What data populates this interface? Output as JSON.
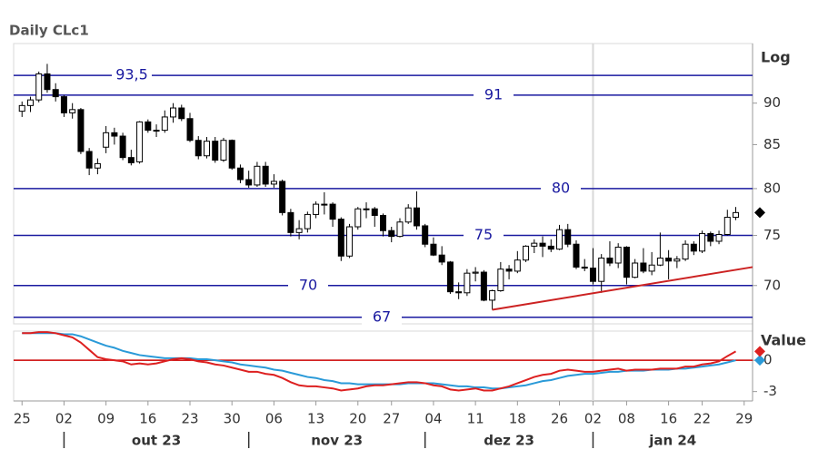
{
  "chart_data": {
    "type": "candlestick",
    "title": "Daily CLc1",
    "y_scale_label": "Log",
    "log_scale": true,
    "up_color": "#ffffff",
    "down_color": "#000000",
    "candles": [
      [
        89.0,
        90.2,
        88.3,
        89.7
      ],
      [
        89.7,
        90.8,
        88.9,
        90.4
      ],
      [
        90.4,
        94.0,
        90.1,
        93.7
      ],
      [
        93.7,
        95.0,
        91.3,
        91.7
      ],
      [
        91.7,
        92.5,
        90.2,
        90.8
      ],
      [
        90.8,
        91.0,
        88.3,
        88.8
      ],
      [
        88.8,
        90.0,
        88.1,
        89.2
      ],
      [
        89.2,
        89.4,
        83.9,
        84.2
      ],
      [
        84.2,
        84.6,
        81.5,
        82.3
      ],
      [
        82.3,
        83.4,
        81.6,
        82.8
      ],
      [
        84.7,
        87.2,
        84.0,
        86.4
      ],
      [
        86.4,
        87.0,
        85.0,
        86.0
      ],
      [
        86.0,
        86.4,
        83.2,
        83.5
      ],
      [
        83.5,
        84.4,
        82.6,
        82.9
      ],
      [
        83.0,
        87.8,
        82.8,
        87.7
      ],
      [
        87.7,
        88.0,
        86.4,
        86.7
      ],
      [
        86.7,
        87.4,
        85.9,
        86.7
      ],
      [
        86.7,
        89.1,
        86.4,
        88.3
      ],
      [
        88.3,
        90.0,
        87.6,
        89.4
      ],
      [
        89.4,
        89.8,
        87.8,
        88.1
      ],
      [
        88.1,
        88.8,
        85.3,
        85.5
      ],
      [
        85.5,
        86.0,
        83.3,
        83.7
      ],
      [
        83.7,
        85.9,
        83.4,
        85.4
      ],
      [
        85.4,
        85.9,
        82.9,
        83.2
      ],
      [
        83.2,
        85.8,
        83.0,
        85.5
      ],
      [
        85.5,
        85.6,
        82.1,
        82.3
      ],
      [
        82.3,
        82.7,
        80.6,
        81.0
      ],
      [
        81.0,
        82.0,
        80.1,
        80.4
      ],
      [
        80.4,
        83.0,
        80.2,
        82.5
      ],
      [
        82.5,
        83.0,
        80.2,
        80.5
      ],
      [
        80.5,
        81.6,
        80.1,
        80.8
      ],
      [
        80.8,
        81.0,
        77.1,
        77.4
      ],
      [
        77.4,
        77.8,
        74.9,
        75.3
      ],
      [
        75.3,
        76.6,
        74.6,
        75.7
      ],
      [
        75.7,
        77.5,
        75.3,
        77.2
      ],
      [
        77.2,
        78.6,
        76.8,
        78.3
      ],
      [
        78.3,
        79.6,
        77.2,
        78.3
      ],
      [
        78.3,
        78.5,
        75.9,
        76.7
      ],
      [
        76.7,
        76.9,
        72.4,
        72.9
      ],
      [
        72.9,
        76.2,
        72.7,
        75.9
      ],
      [
        75.9,
        78.0,
        75.6,
        77.8
      ],
      [
        77.8,
        78.5,
        76.8,
        77.8
      ],
      [
        77.8,
        78.0,
        75.9,
        77.1
      ],
      [
        77.1,
        77.3,
        74.9,
        75.5
      ],
      [
        75.5,
        75.9,
        74.3,
        74.9
      ],
      [
        74.9,
        76.8,
        74.8,
        76.4
      ],
      [
        76.4,
        78.3,
        76.2,
        77.9
      ],
      [
        77.9,
        79.7,
        75.6,
        76.0
      ],
      [
        76.0,
        76.2,
        73.8,
        74.1
      ],
      [
        74.1,
        74.8,
        72.9,
        73.0
      ],
      [
        73.0,
        73.9,
        72.0,
        72.3
      ],
      [
        72.3,
        72.4,
        69.2,
        69.4
      ],
      [
        69.4,
        70.3,
        68.7,
        69.3
      ],
      [
        69.3,
        71.6,
        69.0,
        71.2
      ],
      [
        71.2,
        71.8,
        70.4,
        71.3
      ],
      [
        71.3,
        71.5,
        68.5,
        68.6
      ],
      [
        68.6,
        69.6,
        67.7,
        69.5
      ],
      [
        69.5,
        72.3,
        69.4,
        71.6
      ],
      [
        71.6,
        72.0,
        70.6,
        71.4
      ],
      [
        71.4,
        73.4,
        71.2,
        72.5
      ],
      [
        72.5,
        74.0,
        72.3,
        73.9
      ],
      [
        73.9,
        74.6,
        73.2,
        74.2
      ],
      [
        74.2,
        74.9,
        72.8,
        73.9
      ],
      [
        73.9,
        74.6,
        73.3,
        73.6
      ],
      [
        73.6,
        76.1,
        73.5,
        75.6
      ],
      [
        75.6,
        76.2,
        73.8,
        74.1
      ],
      [
        74.1,
        74.5,
        71.6,
        71.8
      ],
      [
        71.8,
        72.6,
        71.4,
        71.7
      ],
      [
        71.7,
        73.7,
        70.1,
        70.4
      ],
      [
        70.4,
        73.1,
        69.3,
        72.7
      ],
      [
        72.7,
        74.4,
        71.9,
        72.2
      ],
      [
        72.2,
        74.2,
        71.7,
        73.8
      ],
      [
        73.8,
        73.9,
        70.1,
        70.8
      ],
      [
        70.8,
        72.6,
        70.7,
        72.2
      ],
      [
        72.2,
        73.7,
        71.2,
        71.4
      ],
      [
        71.4,
        73.3,
        71.0,
        72.0
      ],
      [
        72.0,
        75.3,
        71.9,
        72.7
      ],
      [
        72.7,
        73.5,
        70.6,
        72.4
      ],
      [
        72.4,
        72.9,
        71.7,
        72.6
      ],
      [
        72.6,
        74.5,
        72.4,
        74.1
      ],
      [
        74.1,
        74.4,
        73.0,
        73.4
      ],
      [
        73.4,
        75.5,
        73.2,
        75.2
      ],
      [
        75.2,
        75.4,
        73.9,
        74.4
      ],
      [
        74.4,
        75.5,
        74.1,
        75.1
      ],
      [
        75.1,
        77.7,
        75.0,
        76.9
      ],
      [
        76.9,
        78.0,
        76.6,
        77.4
      ]
    ],
    "xlim": [
      -1,
      87
    ],
    "xticks": [
      {
        "value": 0,
        "label": "25"
      },
      {
        "value": 5,
        "label": "02"
      },
      {
        "value": 10,
        "label": "09"
      },
      {
        "value": 15,
        "label": "16"
      },
      {
        "value": 20,
        "label": "23"
      },
      {
        "value": 25,
        "label": "30"
      },
      {
        "value": 30,
        "label": "06"
      },
      {
        "value": 35,
        "label": "13"
      },
      {
        "value": 40,
        "label": "20"
      },
      {
        "value": 44,
        "label": "27"
      },
      {
        "value": 49,
        "label": "04"
      },
      {
        "value": 54,
        "label": "11"
      },
      {
        "value": 59,
        "label": "18"
      },
      {
        "value": 64,
        "label": "26"
      },
      {
        "value": 68,
        "label": "02"
      },
      {
        "value": 72,
        "label": "08"
      },
      {
        "value": 77,
        "label": "16"
      },
      {
        "value": 81,
        "label": "22"
      },
      {
        "value": 86,
        "label": "29"
      }
    ],
    "months": [
      "out 23",
      "nov 23",
      "dez 23",
      "jan 24"
    ],
    "month_starts": [
      5,
      27,
      48,
      68
    ],
    "ylim": [
      66.4,
      97.7
    ],
    "yticks": [
      70,
      75,
      80,
      85,
      90
    ],
    "level_color": "#1a1aa0",
    "levels": [
      {
        "value": 93.5,
        "label": "93,5"
      },
      {
        "value": 91,
        "label": "91"
      },
      {
        "value": 80,
        "label": "80"
      },
      {
        "value": 75,
        "label": "75"
      },
      {
        "value": 70,
        "label": "70"
      },
      {
        "value": 67,
        "label": "67"
      }
    ],
    "trendline": {
      "x": [
        56,
        87
      ],
      "values": [
        67.7,
        71.8
      ],
      "color": "#cc2222"
    },
    "indicator": {
      "label": "Value",
      "ylim": [
        -3.9,
        2.8
      ],
      "yticks": [
        0,
        -3
      ],
      "reference_line": {
        "value": 0,
        "color": "#cc0000"
      },
      "series": [
        {
          "color": "#dd2020",
          "values": [
            2.6,
            2.6,
            2.7,
            2.7,
            2.6,
            2.4,
            2.2,
            1.7,
            1.0,
            0.3,
            0.1,
            0.0,
            -0.1,
            -0.4,
            -0.3,
            -0.4,
            -0.3,
            -0.1,
            0.1,
            0.2,
            0.1,
            -0.1,
            -0.2,
            -0.4,
            -0.5,
            -0.7,
            -0.9,
            -1.1,
            -1.1,
            -1.3,
            -1.4,
            -1.7,
            -2.1,
            -2.4,
            -2.5,
            -2.5,
            -2.6,
            -2.7,
            -2.9,
            -2.8,
            -2.7,
            -2.5,
            -2.4,
            -2.4,
            -2.3,
            -2.2,
            -2.1,
            -2.1,
            -2.2,
            -2.4,
            -2.5,
            -2.8,
            -2.9,
            -2.8,
            -2.7,
            -2.9,
            -2.9,
            -2.7,
            -2.5,
            -2.2,
            -1.9,
            -1.6,
            -1.4,
            -1.3,
            -1.0,
            -0.9,
            -1.0,
            -1.1,
            -1.1,
            -1.0,
            -0.9,
            -0.8,
            -1.0,
            -0.9,
            -0.9,
            -0.9,
            -0.8,
            -0.8,
            -0.8,
            -0.6,
            -0.6,
            -0.4,
            -0.3,
            -0.1,
            0.4,
            0.85
          ]
        },
        {
          "color": "#2a9ad8",
          "values": [
            2.6,
            2.6,
            2.6,
            2.6,
            2.6,
            2.5,
            2.5,
            2.3,
            2.0,
            1.7,
            1.4,
            1.2,
            0.9,
            0.7,
            0.5,
            0.4,
            0.3,
            0.2,
            0.2,
            0.2,
            0.2,
            0.1,
            0.1,
            0.0,
            -0.1,
            -0.2,
            -0.4,
            -0.5,
            -0.6,
            -0.7,
            -0.9,
            -1.0,
            -1.2,
            -1.4,
            -1.6,
            -1.7,
            -1.9,
            -2.0,
            -2.2,
            -2.2,
            -2.3,
            -2.3,
            -2.3,
            -2.3,
            -2.3,
            -2.3,
            -2.2,
            -2.2,
            -2.2,
            -2.2,
            -2.3,
            -2.4,
            -2.5,
            -2.5,
            -2.6,
            -2.6,
            -2.7,
            -2.7,
            -2.6,
            -2.5,
            -2.4,
            -2.2,
            -2.0,
            -1.9,
            -1.7,
            -1.5,
            -1.4,
            -1.3,
            -1.3,
            -1.2,
            -1.1,
            -1.1,
            -1.0,
            -1.0,
            -1.0,
            -0.9,
            -0.9,
            -0.9,
            -0.8,
            -0.8,
            -0.7,
            -0.6,
            -0.5,
            -0.4,
            -0.2,
            0.0
          ]
        }
      ]
    }
  }
}
